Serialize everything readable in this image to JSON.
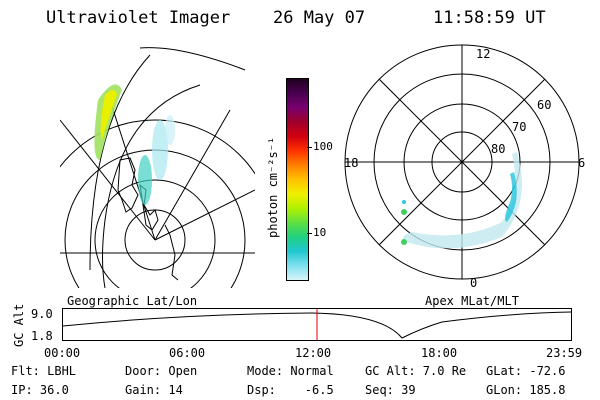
{
  "header": {
    "instrument": "Ultraviolet Imager",
    "date": "26 May 07",
    "time": "11:58:59 UT"
  },
  "colorbar": {
    "unit_label": "photon cm⁻²s⁻¹",
    "ticks": [
      "100",
      "10"
    ],
    "colors": [
      "#200020",
      "#4a0050",
      "#7a0070",
      "#a0002a",
      "#d00010",
      "#ff3000",
      "#ff8000",
      "#ffc000",
      "#f0f000",
      "#b0f000",
      "#60e040",
      "#20d080",
      "#20c8d0",
      "#80e0f0",
      "#d8f4f8"
    ]
  },
  "geo_panel": {
    "label": "Geographic Lat/Lon"
  },
  "polar_panel": {
    "label": "Apex MLat/MLT",
    "mlt_labels": {
      "top": "12",
      "left": "18",
      "right": "6",
      "bottom": "0"
    },
    "lat_labels": [
      "60",
      "70",
      "80"
    ]
  },
  "altitude_plot": {
    "ylabel": "GC Alt",
    "yticks": [
      "9.0",
      "1.8"
    ],
    "xticks": [
      "00:00",
      "06:00",
      "12:00",
      "18:00",
      "23:59"
    ],
    "marker_hours": 12.0
  },
  "info": {
    "row1": {
      "filter": "Flt: LBHL",
      "door": "Door: Open",
      "mode": "Mode: Normal",
      "gc_alt": "GC Alt: 7.0 Re",
      "glat": "GLat: -72.6"
    },
    "row2": {
      "ip": "IP: 36.0",
      "gain": "Gain: 14",
      "dsp": "Dsp:    -6.5",
      "seq": "Seq: 39",
      "glon": "GLon: 185.8"
    }
  }
}
